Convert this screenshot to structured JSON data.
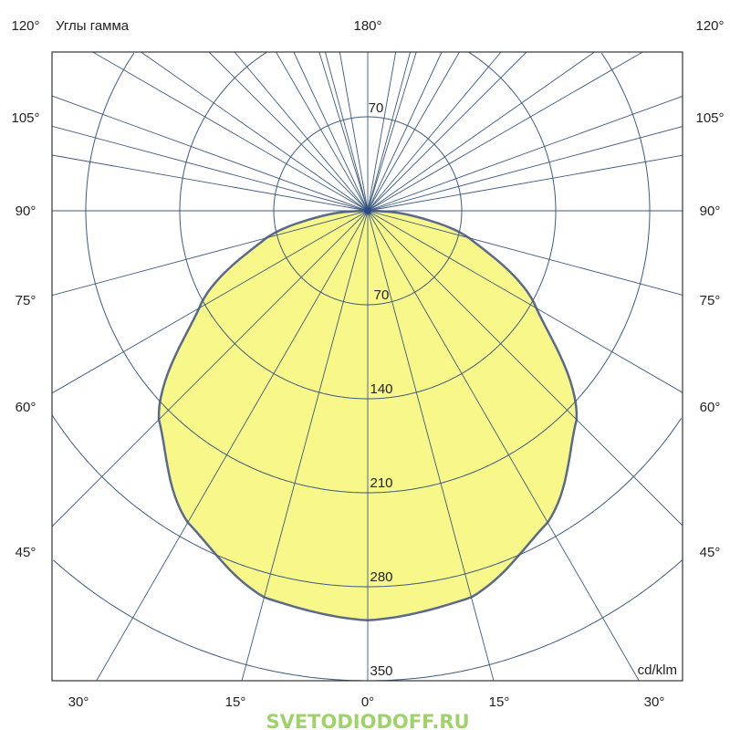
{
  "chart_data": {
    "type": "polar",
    "title": "Углы гамма",
    "unit": "cd/klm",
    "radial_ticks": [
      70,
      140,
      210,
      280,
      350
    ],
    "radial_max": 350,
    "angle_labels_top": [
      "120°",
      "180°",
      "120°"
    ],
    "angle_labels_side": [
      "105°",
      "90°",
      "75°",
      "60°",
      "45°"
    ],
    "angle_labels_bottom": [
      "30°",
      "15°",
      "0°",
      "15°",
      "30°"
    ],
    "grid": true,
    "series": [
      {
        "gamma_deg": [
          0,
          15,
          30,
          45,
          60,
          75,
          85,
          90
        ],
        "intensity": [
          305,
          298,
          268,
          220,
          145,
          78,
          28,
          0
        ],
        "fill": "#f7f78a",
        "stroke": "#5a6a8a"
      }
    ],
    "grid_color": "#3d5a80"
  },
  "watermark": "SVETODIODOFF.RU"
}
